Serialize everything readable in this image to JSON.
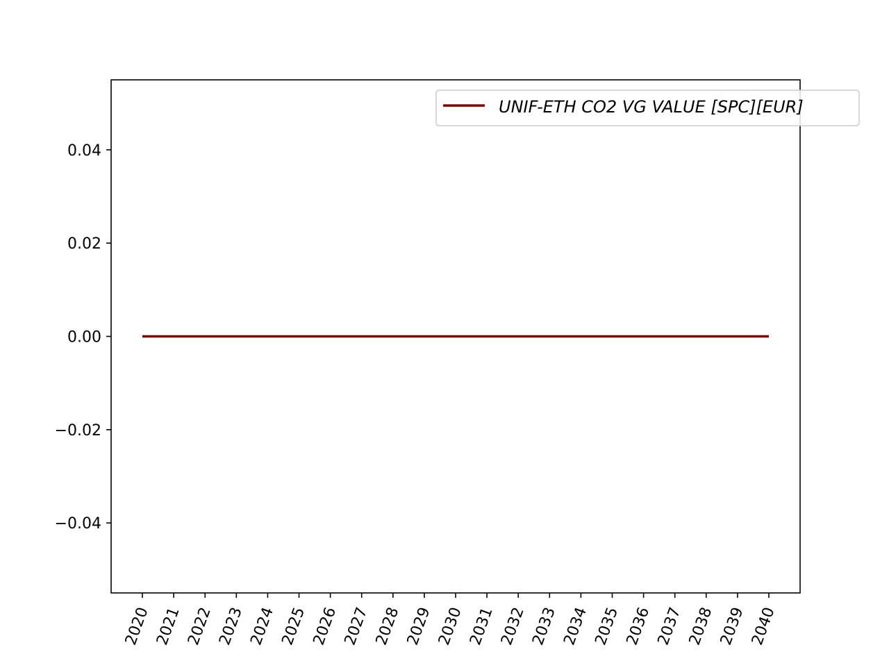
{
  "chart_data": {
    "type": "line",
    "title": "",
    "xlabel": "",
    "ylabel": "",
    "x": [
      "2020",
      "2021",
      "2022",
      "2023",
      "2024",
      "2025",
      "2026",
      "2027",
      "2028",
      "2029",
      "2030",
      "2031",
      "2032",
      "2033",
      "2034",
      "2035",
      "2036",
      "2037",
      "2038",
      "2039",
      "2040"
    ],
    "series": [
      {
        "name": "UNIF-ETH CO2 VG VALUE [SPC][EUR]",
        "color": "#800000",
        "values": [
          0,
          0,
          0,
          0,
          0,
          0,
          0,
          0,
          0,
          0,
          0,
          0,
          0,
          0,
          0,
          0,
          0,
          0,
          0,
          0,
          0
        ]
      }
    ],
    "ylim": [
      -0.055,
      0.055
    ],
    "yticks": [
      0.04,
      0.02,
      0.0,
      -0.02,
      -0.04
    ],
    "ytick_labels": [
      "0.04",
      "0.02",
      "0.00",
      "−0.02",
      "−0.04"
    ],
    "grid": false,
    "legend_position": "upper-right"
  }
}
